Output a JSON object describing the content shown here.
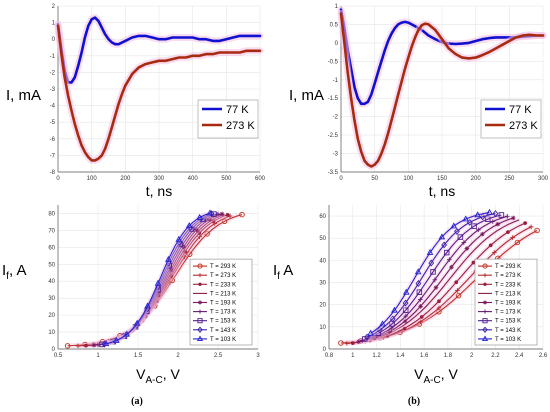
{
  "colors": {
    "blue": "#1010d0",
    "red": "#a82a10",
    "halo": "#f4c0e4"
  },
  "panel_labels": [
    "(a)",
    "(b)"
  ],
  "chart_data": [
    {
      "id": "top-a",
      "type": "line",
      "ylabel": "I, mA",
      "xlabel": "t, ns",
      "xlim": [
        0,
        600
      ],
      "ylim": [
        -8,
        2
      ],
      "xticks": [
        0,
        100,
        200,
        300,
        400,
        500,
        600
      ],
      "yticks": [
        -8,
        -7,
        -6,
        -5,
        -4,
        -3,
        -2,
        -1,
        0,
        1,
        2
      ],
      "legend": "lower right",
      "series": [
        {
          "name": "77 K",
          "color": "blue",
          "x": [
            0,
            10,
            20,
            30,
            40,
            50,
            60,
            70,
            80,
            90,
            100,
            110,
            120,
            130,
            140,
            150,
            160,
            170,
            180,
            190,
            200,
            220,
            240,
            260,
            280,
            300,
            320,
            340,
            360,
            380,
            400,
            420,
            440,
            460,
            480,
            500,
            520,
            540,
            560,
            580,
            600
          ],
          "y": [
            0.9,
            -0.6,
            -1.9,
            -2.6,
            -2.6,
            -2.3,
            -1.6,
            -0.8,
            0.1,
            0.8,
            1.2,
            1.3,
            1.1,
            0.7,
            0.3,
            0.0,
            -0.2,
            -0.3,
            -0.3,
            -0.2,
            -0.1,
            0.1,
            0.2,
            0.2,
            0.1,
            0.0,
            0.0,
            0.1,
            0.1,
            0.1,
            0.1,
            0.0,
            0.0,
            -0.1,
            -0.1,
            0.0,
            0.1,
            0.2,
            0.2,
            0.2,
            0.2
          ]
        },
        {
          "name": "273 K",
          "color": "red",
          "x": [
            0,
            10,
            20,
            30,
            40,
            50,
            60,
            70,
            80,
            90,
            100,
            110,
            120,
            130,
            140,
            150,
            160,
            170,
            180,
            190,
            200,
            220,
            240,
            260,
            280,
            300,
            320,
            340,
            360,
            380,
            400,
            420,
            440,
            460,
            480,
            500,
            520,
            540,
            560,
            580,
            600
          ],
          "y": [
            0.8,
            -0.9,
            -2.3,
            -3.4,
            -4.3,
            -5.1,
            -5.8,
            -6.4,
            -6.8,
            -7.1,
            -7.3,
            -7.3,
            -7.2,
            -7.0,
            -6.6,
            -6.0,
            -5.3,
            -4.6,
            -3.9,
            -3.3,
            -2.8,
            -2.1,
            -1.7,
            -1.5,
            -1.4,
            -1.3,
            -1.3,
            -1.2,
            -1.1,
            -1.1,
            -1.0,
            -1.0,
            -0.9,
            -0.9,
            -0.8,
            -0.8,
            -0.8,
            -0.8,
            -0.7,
            -0.7,
            -0.7
          ]
        }
      ]
    },
    {
      "id": "top-b",
      "type": "line",
      "ylabel": "I, mA",
      "xlabel": "t, ns",
      "xlim": [
        0,
        300
      ],
      "ylim": [
        -3.5,
        1
      ],
      "xticks": [
        0,
        50,
        100,
        150,
        200,
        250,
        300
      ],
      "yticks": [
        -3.5,
        -3,
        -2.5,
        -2,
        -1.5,
        -1,
        -0.5,
        0,
        0.5,
        1
      ],
      "legend": "lower right",
      "series": [
        {
          "name": "77 K",
          "color": "blue",
          "x": [
            0,
            5,
            10,
            15,
            20,
            25,
            30,
            35,
            40,
            45,
            50,
            55,
            60,
            65,
            70,
            75,
            80,
            85,
            90,
            95,
            100,
            105,
            110,
            120,
            130,
            140,
            150,
            160,
            170,
            180,
            190,
            200,
            210,
            220,
            230,
            240,
            250,
            260,
            270,
            280,
            290,
            300
          ],
          "y": [
            0.9,
            0.4,
            -0.2,
            -0.7,
            -1.2,
            -1.5,
            -1.65,
            -1.65,
            -1.6,
            -1.4,
            -1.1,
            -0.8,
            -0.5,
            -0.2,
            0.05,
            0.25,
            0.4,
            0.5,
            0.55,
            0.57,
            0.55,
            0.5,
            0.45,
            0.35,
            0.2,
            0.1,
            0.02,
            -0.02,
            -0.03,
            -0.02,
            0.0,
            0.05,
            0.1,
            0.13,
            0.15,
            0.15,
            0.15,
            0.15,
            0.17,
            0.18,
            0.2,
            0.2
          ]
        },
        {
          "name": "273 K",
          "color": "red",
          "x": [
            0,
            5,
            10,
            15,
            20,
            25,
            30,
            35,
            40,
            45,
            50,
            55,
            60,
            65,
            70,
            75,
            80,
            85,
            90,
            95,
            100,
            105,
            110,
            115,
            120,
            125,
            130,
            140,
            150,
            160,
            170,
            180,
            190,
            200,
            210,
            220,
            230,
            240,
            250,
            260,
            270,
            280,
            290,
            300
          ],
          "y": [
            0.8,
            0.0,
            -0.8,
            -1.5,
            -2.1,
            -2.6,
            -2.95,
            -3.2,
            -3.3,
            -3.35,
            -3.3,
            -3.2,
            -3.0,
            -2.75,
            -2.45,
            -2.1,
            -1.75,
            -1.4,
            -1.05,
            -0.7,
            -0.4,
            -0.1,
            0.15,
            0.35,
            0.48,
            0.52,
            0.5,
            0.35,
            0.1,
            -0.15,
            -0.3,
            -0.4,
            -0.42,
            -0.4,
            -0.33,
            -0.25,
            -0.15,
            -0.05,
            0.05,
            0.15,
            0.2,
            0.22,
            0.2,
            0.2
          ]
        }
      ]
    },
    {
      "id": "bottom-a",
      "type": "line",
      "ylabel": "If, A",
      "ylabel_main": "I",
      "ylabel_sub": "f",
      "ylabel_rest": ", A",
      "xlabel_main": "V",
      "xlabel_sub": "A-C",
      "xlabel_rest": ", V",
      "xlim": [
        0.5,
        3
      ],
      "ylim": [
        0,
        85
      ],
      "xticks": [
        0.5,
        1,
        1.5,
        2,
        2.5,
        3
      ],
      "xticklabels": [
        "0.5",
        "1",
        "1.5",
        "2",
        "2.5",
        "3"
      ],
      "yticks": [
        0,
        10,
        20,
        30,
        40,
        50,
        60,
        70,
        80
      ],
      "legend": "lower right",
      "series": [
        {
          "name": "T = 293 K",
          "color": "#c0301c",
          "marker": "circle",
          "v0": 0.62,
          "v1": 2.8,
          "k": 3.6,
          "vm": 1.95,
          "i0": 1.2
        },
        {
          "name": "T = 273 K",
          "color": "#b42a2a",
          "marker": "plus",
          "v0": 0.75,
          "v1": 2.65,
          "k": 3.9,
          "vm": 1.92,
          "i0": 1.0
        },
        {
          "name": "T = 233 K",
          "color": "#9c1e3c",
          "marker": "dot",
          "v0": 0.85,
          "v1": 2.62,
          "k": 4.2,
          "vm": 1.9,
          "i0": 1.0
        },
        {
          "name": "T = 213 K",
          "color": "#8c1a4a",
          "marker": "none",
          "v0": 0.9,
          "v1": 2.58,
          "k": 4.4,
          "vm": 1.88,
          "i0": 1.0
        },
        {
          "name": "T = 193 K",
          "color": "#7a1a5c",
          "marker": "star",
          "v0": 0.95,
          "v1": 2.55,
          "k": 4.6,
          "vm": 1.86,
          "i0": 1.0
        },
        {
          "name": "T = 173 K",
          "color": "#661c72",
          "marker": "plus",
          "v0": 1.0,
          "v1": 2.5,
          "k": 4.8,
          "vm": 1.84,
          "i0": 1.0
        },
        {
          "name": "T = 153 K",
          "color": "#4e1e90",
          "marker": "square",
          "v0": 1.05,
          "v1": 2.45,
          "k": 5.0,
          "vm": 1.82,
          "i0": 1.0
        },
        {
          "name": "T = 143 K",
          "color": "#3c20aa",
          "marker": "diamond",
          "v0": 1.08,
          "v1": 2.42,
          "k": 5.2,
          "vm": 1.8,
          "i0": 1.0
        },
        {
          "name": "T = 103 K",
          "color": "#2222d0",
          "marker": "triangle",
          "v0": 1.1,
          "v1": 2.4,
          "k": 5.4,
          "vm": 1.78,
          "i0": 1.0
        }
      ]
    },
    {
      "id": "bottom-b",
      "type": "line",
      "ylabel": "If, A",
      "ylabel_main": "I",
      "ylabel_sub": "f",
      "ylabel_rest": " A",
      "xlabel_main": "V",
      "xlabel_sub": "A-C",
      "xlabel_rest": ", V",
      "xlim": [
        0.8,
        2.6
      ],
      "ylim": [
        0,
        65
      ],
      "xticks": [
        0.8,
        1,
        1.2,
        1.4,
        1.6,
        1.8,
        2,
        2.2,
        2.4,
        2.6
      ],
      "xticklabels": [
        "0.8",
        "1",
        "1.2",
        "1.4",
        "1.6",
        "1.8",
        "2",
        "2.2",
        "2.4",
        "2.6"
      ],
      "yticks": [
        0,
        10,
        20,
        30,
        40,
        50,
        60
      ],
      "legend": "lower right",
      "series": [
        {
          "name": "T = 293 K",
          "color": "#c0301c",
          "marker": "circle",
          "v0": 0.9,
          "v1": 2.55,
          "k": 3.4,
          "vm": 2.05,
          "i0": 1.5
        },
        {
          "name": "T = 273 K",
          "color": "#b42a2a",
          "marker": "plus",
          "v0": 0.95,
          "v1": 2.5,
          "k": 3.7,
          "vm": 1.98,
          "i0": 1.2
        },
        {
          "name": "T = 233 K",
          "color": "#9c1e3c",
          "marker": "dot",
          "v0": 1.0,
          "v1": 2.45,
          "k": 4.0,
          "vm": 1.9,
          "i0": 1.0
        },
        {
          "name": "T = 213 K",
          "color": "#8c1a4a",
          "marker": "none",
          "v0": 1.02,
          "v1": 2.4,
          "k": 4.3,
          "vm": 1.82,
          "i0": 1.0
        },
        {
          "name": "T = 193 K",
          "color": "#7a1a5c",
          "marker": "star",
          "v0": 1.05,
          "v1": 2.35,
          "k": 4.6,
          "vm": 1.76,
          "i0": 1.0
        },
        {
          "name": "T = 173 K",
          "color": "#661c72",
          "marker": "plus",
          "v0": 1.08,
          "v1": 2.3,
          "k": 4.9,
          "vm": 1.7,
          "i0": 1.0
        },
        {
          "name": "T = 153 K",
          "color": "#4e1e90",
          "marker": "square",
          "v0": 1.1,
          "v1": 2.25,
          "k": 5.2,
          "vm": 1.64,
          "i0": 1.0
        },
        {
          "name": "T = 143 K",
          "color": "#3c20aa",
          "marker": "diamond",
          "v0": 1.12,
          "v1": 2.2,
          "k": 5.6,
          "vm": 1.58,
          "i0": 1.0
        },
        {
          "name": "T = 103 K",
          "color": "#2222d0",
          "marker": "triangle",
          "v0": 1.15,
          "v1": 2.15,
          "k": 6.0,
          "vm": 1.52,
          "i0": 1.0
        }
      ]
    }
  ]
}
